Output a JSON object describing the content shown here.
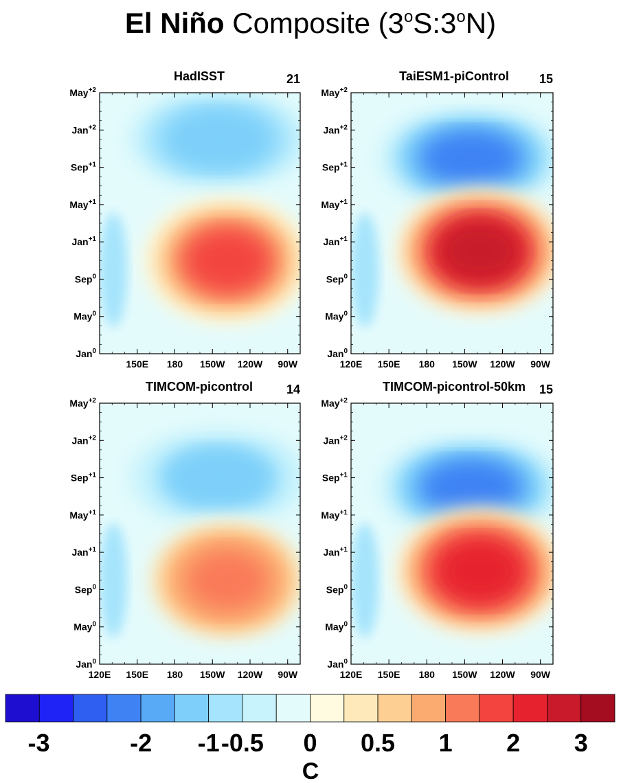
{
  "figure": {
    "title_bold": "El Niño",
    "title_rest": " Composite (3",
    "title_sup1": "o",
    "title_mid": "S:3",
    "title_sup2": "o",
    "title_end": "N)"
  },
  "chart_data": [
    {
      "type": "heatmap",
      "title": "HadISST",
      "count": "21",
      "x_ticks": [
        "150E",
        "180",
        "150W",
        "120W",
        "90W"
      ],
      "y_ticks": [
        "Jan0",
        "May0",
        "Sep0",
        "Jan+1",
        "May+1",
        "Sep+1",
        "Jan+2",
        "May+2"
      ],
      "x_range": [
        "120E",
        "80W"
      ],
      "y_range": [
        "Jan0",
        "May+2"
      ],
      "warm_peak_C": 2.2,
      "cold_peak_C": -0.9,
      "warm_peak_time": "Nov0",
      "cold_peak_time": "Dec+1"
    },
    {
      "type": "heatmap",
      "title": "TaiESM1-piControl",
      "count": "15",
      "x_ticks": [
        "120E",
        "150E",
        "180",
        "150W",
        "120W",
        "90W"
      ],
      "y_ticks": [
        "Jan0",
        "May0",
        "Sep0",
        "Jan+1",
        "May+1",
        "Sep+1",
        "Jan+2",
        "May+2"
      ],
      "x_range": [
        "120E",
        "80W"
      ],
      "y_range": [
        "Jan0",
        "May+2"
      ],
      "warm_peak_C": 3.2,
      "cold_peak_C": -1.8,
      "warm_peak_time": "Dec0",
      "cold_peak_time": "Oct+1"
    },
    {
      "type": "heatmap",
      "title": "TIMCOM-picontrol",
      "count": "14",
      "x_ticks": [
        "120E",
        "150E",
        "180",
        "150W",
        "120W",
        "90W"
      ],
      "y_ticks": [
        "Jan0",
        "May0",
        "Sep0",
        "Jan+1",
        "May+1",
        "Sep+1",
        "Jan+2",
        "May+2"
      ],
      "x_range": [
        "120E",
        "80W"
      ],
      "y_range": [
        "Jan0",
        "May+2"
      ],
      "warm_peak_C": 1.8,
      "cold_peak_C": -0.8,
      "warm_peak_time": "Oct0",
      "cold_peak_time": "Sep+1"
    },
    {
      "type": "heatmap",
      "title": "TIMCOM-picontrol-50km",
      "count": "15",
      "x_ticks": [
        "120E",
        "150E",
        "180",
        "150W",
        "120W",
        "90W"
      ],
      "y_ticks": [
        "Jan0",
        "May0",
        "Sep0",
        "Jan+1",
        "May+1",
        "Sep+1",
        "Jan+2",
        "May+2"
      ],
      "x_range": [
        "120E",
        "80W"
      ],
      "y_range": [
        "Jan0",
        "May+2"
      ],
      "warm_peak_C": 3.1,
      "cold_peak_C": -1.7,
      "warm_peak_time": "Nov0",
      "cold_peak_time": "Aug+1"
    }
  ],
  "colorbar": {
    "levels": [
      -3.5,
      -3,
      -2.5,
      -2,
      -1.5,
      -1,
      -0.5,
      -0.25,
      0,
      0.25,
      0.5,
      0.75,
      1,
      1.5,
      2,
      2.5,
      3,
      3.5
    ],
    "colors": [
      "#1e0fd0",
      "#1f23f5",
      "#2f5ff0",
      "#3e82f4",
      "#58aaf7",
      "#7ed0fa",
      "#a5e4fc",
      "#c8f3fc",
      "#e4fbfc",
      "#fefbe1",
      "#fde9b9",
      "#fdcf93",
      "#fcab70",
      "#f97a58",
      "#f3443f",
      "#e6222f",
      "#c81a2a",
      "#a40c1f"
    ],
    "labels": [
      "-3",
      "-2",
      "-1",
      "-0.5",
      "0",
      "0.5",
      "1",
      "2",
      "3"
    ],
    "unit": "C"
  }
}
